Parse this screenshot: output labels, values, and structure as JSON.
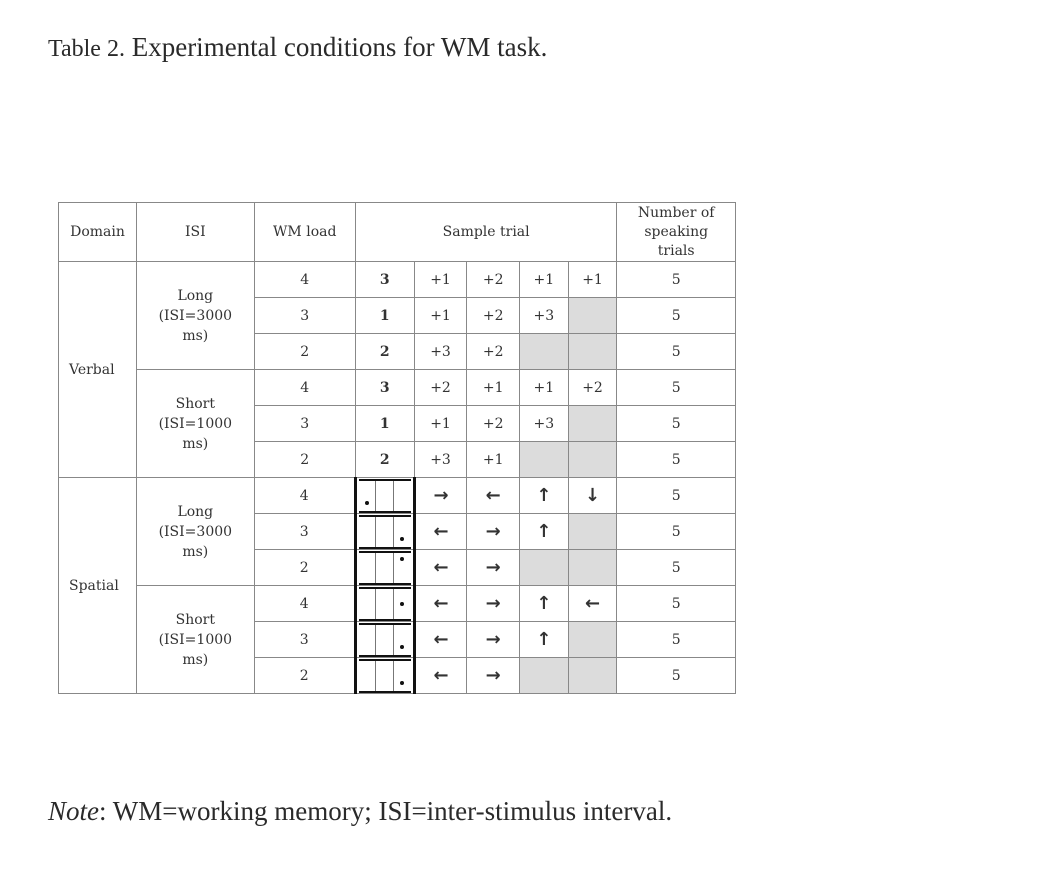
{
  "caption": {
    "label": "Table 2.",
    "text": "Experimental conditions for WM task."
  },
  "headers": {
    "domain": "Domain",
    "isi": "ISI",
    "load": "WM load",
    "sample": "Sample trial",
    "trials": [
      "Number of",
      "speaking",
      "trials"
    ]
  },
  "groups": [
    {
      "domain": "Verbal",
      "isi": [
        "Long",
        "(ISI=3000",
        "ms)"
      ],
      "rows": [
        {
          "load": "4",
          "first": "3",
          "steps": [
            "+1",
            "+2",
            "+1",
            "+1"
          ],
          "trials": "5"
        },
        {
          "load": "3",
          "first": "1",
          "steps": [
            "+1",
            "+2",
            "+3",
            ""
          ],
          "trials": "5"
        },
        {
          "load": "2",
          "first": "2",
          "steps": [
            "+3",
            "+2",
            "",
            ""
          ],
          "trials": "5"
        }
      ]
    },
    {
      "domain": "",
      "isi": [
        "Short",
        "(ISI=1000",
        "ms)"
      ],
      "rows": [
        {
          "load": "4",
          "first": "3",
          "steps": [
            "+2",
            "+1",
            "+1",
            "+2"
          ],
          "trials": "5"
        },
        {
          "load": "3",
          "first": "1",
          "steps": [
            "+1",
            "+2",
            "+3",
            ""
          ],
          "trials": "5"
        },
        {
          "load": "2",
          "first": "2",
          "steps": [
            "+3",
            "+1",
            "",
            ""
          ],
          "trials": "5"
        }
      ]
    },
    {
      "domain": "Spatial",
      "isi": [
        "Long",
        "(ISI=3000",
        "ms)"
      ],
      "rows": [
        {
          "load": "4",
          "grid": {
            "col": 0,
            "pos": "bottom"
          },
          "steps": [
            "→",
            "←",
            "↑",
            "↓"
          ],
          "trials": "5"
        },
        {
          "load": "3",
          "grid": {
            "col": 2,
            "pos": "bottom"
          },
          "steps": [
            "←",
            "→",
            "↑",
            ""
          ],
          "trials": "5"
        },
        {
          "load": "2",
          "grid": {
            "col": 2,
            "pos": "top"
          },
          "steps": [
            "←",
            "→",
            "",
            ""
          ],
          "trials": "5"
        }
      ]
    },
    {
      "domain": "",
      "isi": [
        "Short",
        "(ISI=1000",
        "ms)"
      ],
      "rows": [
        {
          "load": "4",
          "grid": {
            "col": 2,
            "pos": "middle"
          },
          "steps": [
            "←",
            "→",
            "↑",
            "←"
          ],
          "trials": "5"
        },
        {
          "load": "3",
          "grid": {
            "col": 2,
            "pos": "bottom"
          },
          "steps": [
            "←",
            "→",
            "↑",
            ""
          ],
          "trials": "5"
        },
        {
          "load": "2",
          "grid": {
            "col": 2,
            "pos": "bottom"
          },
          "steps": [
            "←",
            "→",
            "",
            ""
          ],
          "trials": "5"
        }
      ]
    }
  ],
  "note": {
    "label": "Note",
    "text": ": WM=working memory; ISI=inter-stimulus interval."
  }
}
